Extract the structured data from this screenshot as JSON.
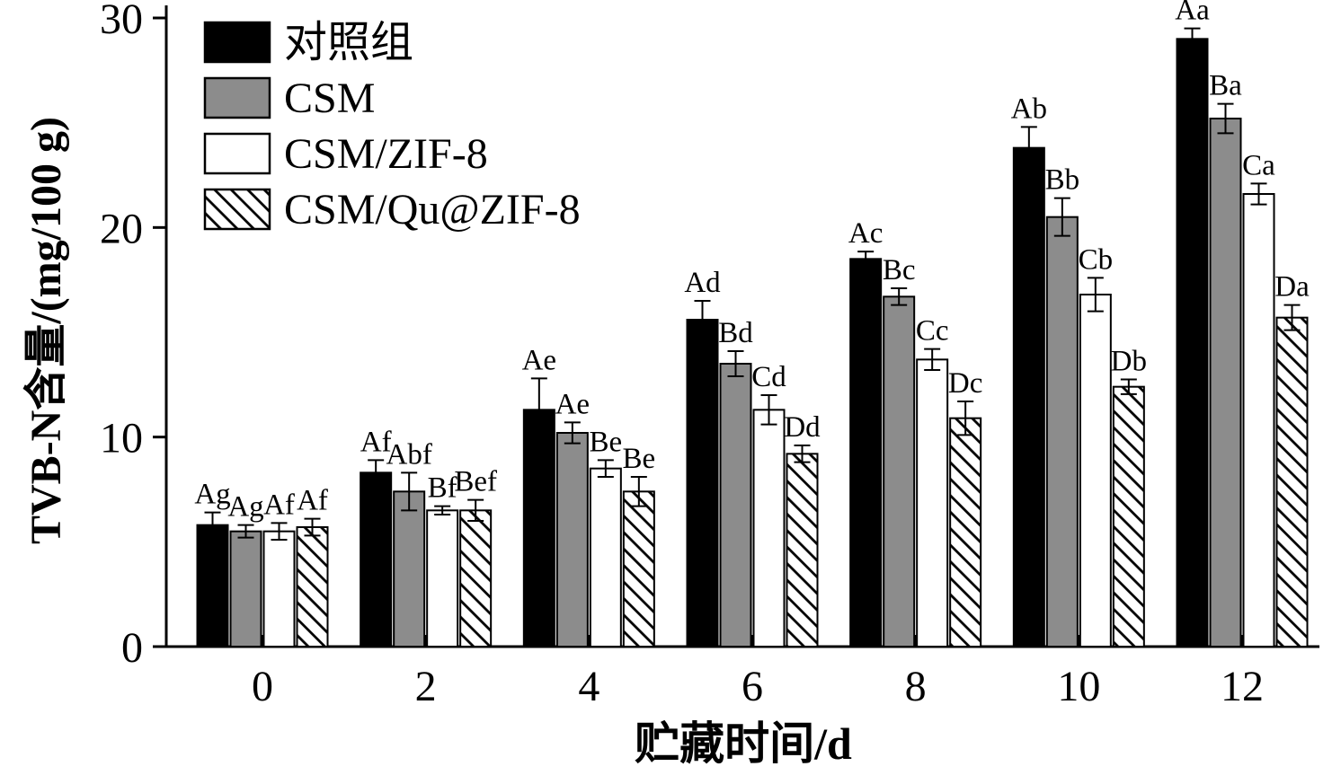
{
  "chart_data": {
    "type": "bar",
    "title": "",
    "xlabel": "贮藏时间/d",
    "ylabel": "TVB-N含量/(mg/100 g)",
    "categories": [
      "0",
      "2",
      "4",
      "6",
      "8",
      "10",
      "12"
    ],
    "ylim": [
      0,
      30
    ],
    "yticks": [
      0,
      10,
      20,
      30
    ],
    "grid": false,
    "legend_position": "top-left-inside",
    "colors": {
      "axis": "#000000",
      "bar_edge": "#000000",
      "gray_series": "#8c8c8c"
    },
    "series": [
      {
        "name": "对照组",
        "fill": "#000000",
        "pattern": "solid",
        "values": [
          5.8,
          8.3,
          11.3,
          15.6,
          18.5,
          23.8,
          29.0
        ],
        "errors": [
          0.6,
          0.6,
          1.5,
          0.9,
          0.35,
          1.0,
          0.5
        ],
        "point_labels": [
          "Ag",
          "Af",
          "Ae",
          "Ad",
          "Ac",
          "Ab",
          "Aa"
        ]
      },
      {
        "name": "CSM",
        "fill": "#8c8c8c",
        "pattern": "solid",
        "values": [
          5.5,
          7.4,
          10.2,
          13.5,
          16.7,
          20.5,
          25.2
        ],
        "errors": [
          0.3,
          0.9,
          0.5,
          0.6,
          0.4,
          0.9,
          0.7
        ],
        "point_labels": [
          "Ag",
          "Abf",
          "Ae",
          "Bd",
          "Bc",
          "Bb",
          "Ba"
        ]
      },
      {
        "name": "CSM/ZIF-8",
        "fill": "#ffffff",
        "pattern": "solid",
        "values": [
          5.5,
          6.5,
          8.5,
          11.3,
          13.7,
          16.8,
          21.6
        ],
        "errors": [
          0.4,
          0.2,
          0.4,
          0.7,
          0.5,
          0.8,
          0.5
        ],
        "point_labels": [
          "Af",
          "Bf",
          "Be",
          "Cd",
          "Cc",
          "Cb",
          "Ca"
        ]
      },
      {
        "name": "CSM/Qu@ZIF-8",
        "fill": "#ffffff",
        "pattern": "diagonal-hatch",
        "values": [
          5.7,
          6.5,
          7.4,
          9.2,
          10.9,
          12.4,
          15.7
        ],
        "errors": [
          0.4,
          0.5,
          0.7,
          0.4,
          0.8,
          0.35,
          0.6
        ],
        "point_labels": [
          "Af",
          "Bef",
          "Be",
          "Dd",
          "Dc",
          "Db",
          "Da"
        ]
      }
    ]
  }
}
